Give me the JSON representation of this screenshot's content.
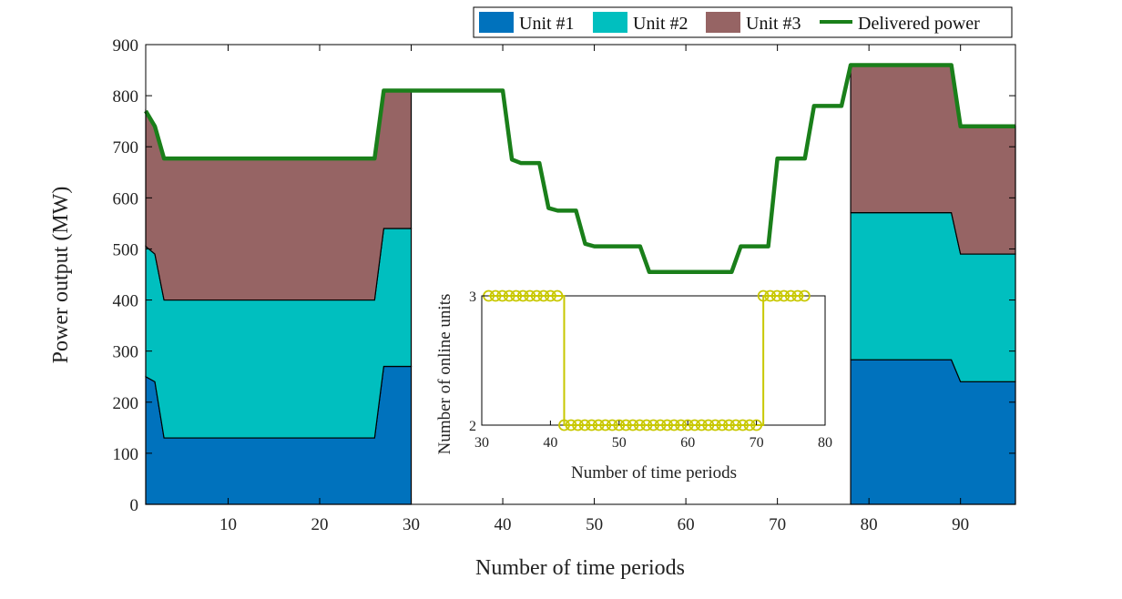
{
  "chart_data": [
    {
      "type": "area",
      "title": "",
      "xlabel": "Number of time periods",
      "ylabel": "Power output (MW)",
      "xlim": [
        1,
        96
      ],
      "ylim": [
        0,
        900
      ],
      "xticks": [
        10,
        20,
        30,
        40,
        50,
        60,
        70,
        80,
        90
      ],
      "yticks": [
        0,
        100,
        200,
        300,
        400,
        500,
        600,
        700,
        800,
        900
      ],
      "colors": {
        "unit1": "#0072BD",
        "unit2": "#00BFBF",
        "unit3": "#966464",
        "delivered": "#1A7F1A",
        "outline": "#000000"
      },
      "legend": {
        "position": "top-right",
        "entries": [
          "Unit #1",
          "Unit #2",
          "Unit #3",
          "Delivered power"
        ]
      },
      "stacked_segments": [
        {
          "x": [
            1,
            2,
            3,
            4,
            5,
            6,
            7,
            8,
            9,
            10,
            11,
            12,
            13,
            14,
            15,
            16,
            17,
            18,
            19,
            20,
            21,
            22,
            23,
            24,
            25,
            26,
            27,
            28,
            29,
            30
          ],
          "unit1": [
            250,
            240,
            130,
            130,
            130,
            130,
            130,
            130,
            130,
            130,
            130,
            130,
            130,
            130,
            130,
            130,
            130,
            130,
            130,
            130,
            130,
            130,
            130,
            130,
            130,
            130,
            270,
            270,
            270,
            270
          ],
          "unit2": [
            255,
            250,
            270,
            270,
            270,
            270,
            270,
            270,
            270,
            270,
            270,
            270,
            270,
            270,
            270,
            270,
            270,
            270,
            270,
            270,
            270,
            270,
            270,
            270,
            270,
            270,
            270,
            270,
            270,
            270
          ],
          "unit3": [
            265,
            250,
            277,
            277,
            277,
            277,
            277,
            277,
            277,
            277,
            277,
            277,
            277,
            277,
            277,
            277,
            277,
            277,
            277,
            277,
            277,
            277,
            277,
            277,
            277,
            277,
            270,
            270,
            270,
            270
          ]
        },
        {
          "x": [
            78,
            79,
            80,
            81,
            82,
            83,
            84,
            85,
            86,
            87,
            88,
            89,
            90,
            91,
            92,
            93,
            94,
            95,
            96
          ],
          "unit1": [
            283,
            283,
            283,
            283,
            283,
            283,
            283,
            283,
            283,
            283,
            283,
            283,
            240,
            240,
            240,
            240,
            240,
            240,
            240
          ],
          "unit2": [
            288,
            288,
            288,
            288,
            288,
            288,
            288,
            288,
            288,
            288,
            288,
            288,
            250,
            250,
            250,
            250,
            250,
            250,
            250
          ],
          "unit3": [
            290,
            290,
            290,
            290,
            290,
            290,
            290,
            290,
            290,
            290,
            290,
            290,
            250,
            250,
            250,
            250,
            250,
            250,
            250
          ]
        }
      ],
      "series": [
        {
          "name": "Delivered power",
          "x": [
            1,
            2,
            3,
            4,
            26,
            27,
            28,
            39,
            40,
            41,
            42,
            43,
            44,
            45,
            46,
            47,
            48,
            49,
            50,
            51,
            52,
            53,
            54,
            55,
            56,
            57,
            64,
            65,
            66,
            67,
            68,
            69,
            70,
            71,
            72,
            73,
            74,
            75,
            76,
            77,
            78,
            89,
            90,
            96
          ],
          "values": [
            770,
            740,
            677,
            677,
            677,
            810,
            810,
            810,
            810,
            675,
            668,
            668,
            668,
            580,
            575,
            575,
            575,
            510,
            505,
            505,
            505,
            505,
            505,
            505,
            455,
            455,
            455,
            455,
            505,
            505,
            505,
            505,
            677,
            677,
            677,
            677,
            780,
            780,
            780,
            780,
            860,
            860,
            740,
            740
          ]
        }
      ]
    },
    {
      "type": "line",
      "title": "",
      "xlabel": "Number of time periods",
      "ylabel": "Number of online units",
      "xlim": [
        30,
        80
      ],
      "ylim": [
        2,
        3
      ],
      "xticks": [
        30,
        40,
        50,
        60,
        70,
        80
      ],
      "yticks": [
        2,
        3
      ],
      "color": "#C8C800",
      "series": [
        {
          "name": "Number of online units",
          "x": [
            31,
            32,
            33,
            34,
            35,
            36,
            37,
            38,
            39,
            40,
            41,
            42,
            43,
            44,
            45,
            46,
            47,
            48,
            49,
            50,
            51,
            52,
            53,
            54,
            55,
            56,
            57,
            58,
            59,
            60,
            61,
            62,
            63,
            64,
            65,
            66,
            67,
            68,
            69,
            70,
            71,
            72,
            73,
            74,
            75,
            76,
            77
          ],
          "values": [
            3,
            3,
            3,
            3,
            3,
            3,
            3,
            3,
            3,
            3,
            3,
            2,
            2,
            2,
            2,
            2,
            2,
            2,
            2,
            2,
            2,
            2,
            2,
            2,
            2,
            2,
            2,
            2,
            2,
            2,
            2,
            2,
            2,
            2,
            2,
            2,
            2,
            2,
            2,
            2,
            3,
            3,
            3,
            3,
            3,
            3,
            3
          ]
        }
      ]
    }
  ]
}
